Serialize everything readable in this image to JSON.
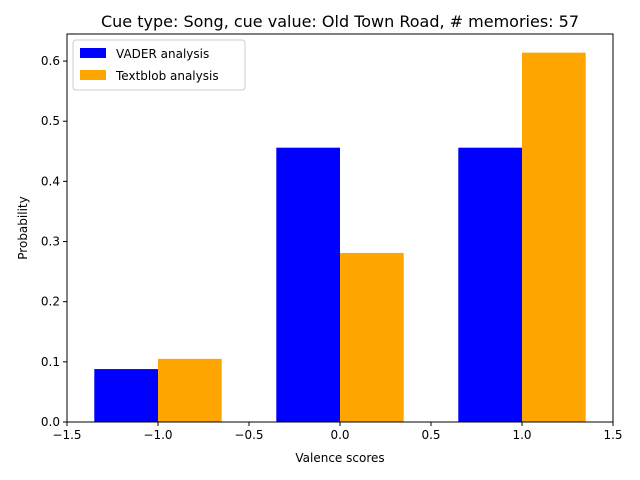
{
  "chart_data": {
    "type": "bar",
    "title": "Cue type: Song, cue value: Old Town Road, # memories: 57",
    "xlabel": "Valence scores",
    "ylabel": "Probability",
    "xlim": [
      -1.5,
      1.5
    ],
    "ylim": [
      0,
      0.645
    ],
    "xticks": [
      -1.5,
      -1.0,
      -0.5,
      0.0,
      0.5,
      1.0,
      1.5
    ],
    "xtick_labels": [
      "−1.5",
      "−1.0",
      "−0.5",
      "0.0",
      "0.5",
      "1.0",
      "1.5"
    ],
    "yticks": [
      0,
      0.1,
      0.2,
      0.3,
      0.4,
      0.5,
      0.6
    ],
    "ytick_labels": [
      "0.0",
      "0.1",
      "0.2",
      "0.3",
      "0.4",
      "0.5",
      "0.6"
    ],
    "categories": [
      -1,
      0,
      1
    ],
    "bar_width": 0.35,
    "grid": false,
    "legend_position": "top-left",
    "series": [
      {
        "name": "VADER analysis",
        "color": "#0000ff",
        "values": [
          0.088,
          0.456,
          0.456
        ]
      },
      {
        "name": "Textblob analysis",
        "color": "#ffa500",
        "values": [
          0.105,
          0.281,
          0.614
        ]
      }
    ]
  }
}
